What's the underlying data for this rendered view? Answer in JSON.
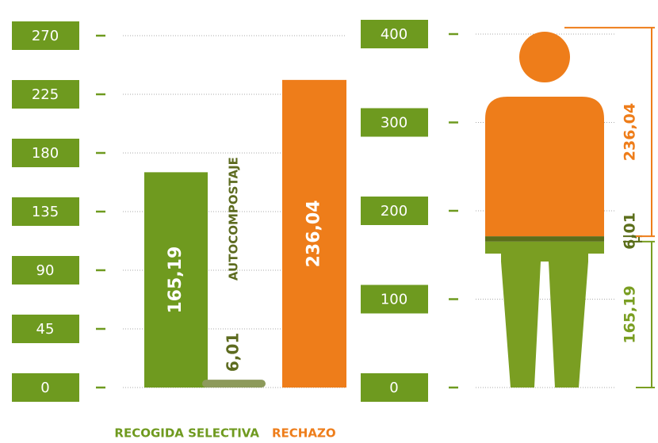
{
  "chart_data": [
    {
      "type": "bar",
      "categories": [
        "RECOGIDA SELECTIVA",
        "AUTOCOMPOSTAJE",
        "RECHAZO"
      ],
      "values": [
        165.19,
        6.01,
        236.04
      ],
      "value_labels": [
        "165,19",
        "6,01",
        "236,04"
      ],
      "colors": [
        "#6f9a1f",
        "#8d9a5b",
        "#ee7d1a"
      ],
      "ylim": [
        0,
        270
      ],
      "yticks": [
        0,
        45,
        90,
        135,
        180,
        225,
        270
      ],
      "grid": true
    },
    {
      "type": "figure",
      "values": [
        165.19,
        6.01,
        236.04
      ],
      "value_labels": [
        "165,19",
        "6,01",
        "236,04"
      ],
      "colors": [
        "#7a9e22",
        "#5b6e1a",
        "#ee7d1a"
      ],
      "ylim": [
        0,
        400
      ],
      "yticks": [
        0,
        100,
        200,
        300,
        400
      ],
      "grid": true
    }
  ]
}
